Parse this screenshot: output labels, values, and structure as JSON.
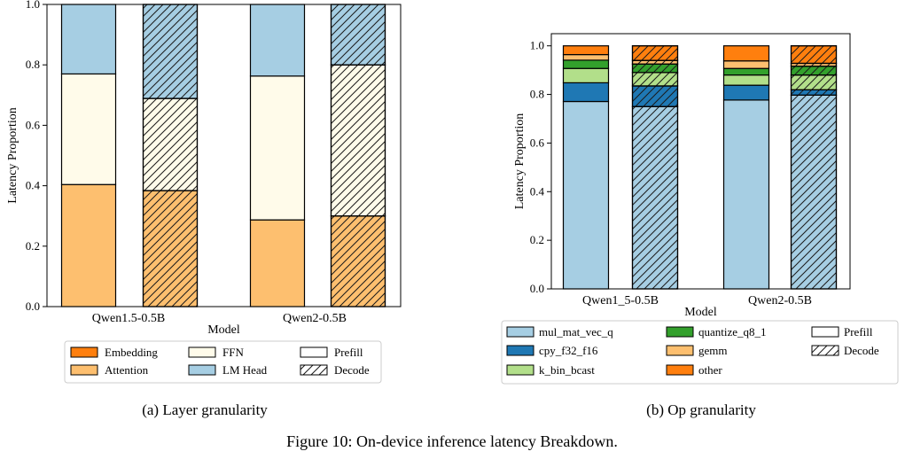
{
  "figure_caption": "Figure 10: On-device inference latency Breakdown.",
  "colors": {
    "dark_orange": "#ff7f0e",
    "light_orange": "#fdbf6f",
    "cream": "#fffbea",
    "light_blue": "#a6cee3",
    "dark_blue": "#1f78b4",
    "dark_green": "#33a02c",
    "light_green": "#b2df8a"
  },
  "chart_data": [
    {
      "type": "bar",
      "stacked": true,
      "subcaption": "(a) Layer granularity",
      "title": "",
      "xlabel": "Model",
      "ylabel": "Latency Proportion",
      "ylim": [
        0,
        1.0
      ],
      "yticks": [
        "0.0",
        "0.2",
        "0.4",
        "0.6",
        "0.8",
        "1.0"
      ],
      "categories": [
        "Qwen1.5-0.5B",
        "Qwen2-0.5B"
      ],
      "phases": [
        "Prefill",
        "Decode"
      ],
      "series": [
        {
          "name": "Attention",
          "color": "#fdbf6f",
          "prefill": [
            0.404,
            0.287
          ],
          "decode": [
            0.384,
            0.3
          ]
        },
        {
          "name": "FFN",
          "color": "#fffbea",
          "prefill": [
            0.366,
            0.476
          ],
          "decode": [
            0.305,
            0.5
          ]
        },
        {
          "name": "LM Head",
          "color": "#a6cee3",
          "prefill": [
            0.23,
            0.237
          ],
          "decode": [
            0.311,
            0.2
          ]
        },
        {
          "name": "Embedding",
          "color": "#ff7f0e",
          "prefill": [
            0.0,
            0.0
          ],
          "decode": [
            0.0,
            0.0
          ]
        }
      ],
      "legend": {
        "placement": "bottom",
        "entries": [
          "Embedding",
          "FFN",
          "Prefill",
          "Attention",
          "LM Head",
          "Decode"
        ]
      }
    },
    {
      "type": "bar",
      "stacked": true,
      "subcaption": "(b) Op granularity",
      "title": "",
      "xlabel": "Model",
      "ylabel": "Latency Proportion",
      "ylim": [
        0,
        1.05
      ],
      "yticks": [
        "0.0",
        "0.2",
        "0.4",
        "0.6",
        "0.8",
        "1.0"
      ],
      "categories": [
        "Qwen1_5-0.5B",
        "Qwen2-0.5B"
      ],
      "phases": [
        "Prefill",
        "Decode"
      ],
      "series": [
        {
          "name": "mul_mat_vec_q",
          "color": "#a6cee3",
          "prefill": [
            0.771,
            0.777
          ],
          "decode": [
            0.75,
            0.797
          ]
        },
        {
          "name": "cpy_f32_f16",
          "color": "#1f78b4",
          "prefill": [
            0.077,
            0.061
          ],
          "decode": [
            0.085,
            0.022
          ]
        },
        {
          "name": "k_bin_bcast",
          "color": "#b2df8a",
          "prefill": [
            0.059,
            0.042
          ],
          "decode": [
            0.055,
            0.061
          ]
        },
        {
          "name": "quantize_q8_1",
          "color": "#33a02c",
          "prefill": [
            0.034,
            0.027
          ],
          "decode": [
            0.035,
            0.036
          ]
        },
        {
          "name": "gemm",
          "color": "#fdbf6f",
          "prefill": [
            0.023,
            0.031
          ],
          "decode": [
            0.015,
            0.012
          ]
        },
        {
          "name": "other",
          "color": "#ff7f0e",
          "prefill": [
            0.036,
            0.062
          ],
          "decode": [
            0.06,
            0.072
          ]
        }
      ],
      "legend": {
        "placement": "bottom",
        "entries": [
          "mul_mat_vec_q",
          "quantize_q8_1",
          "Prefill",
          "cpy_f32_f16",
          "gemm",
          "Decode",
          "k_bin_bcast",
          "other"
        ]
      }
    }
  ]
}
